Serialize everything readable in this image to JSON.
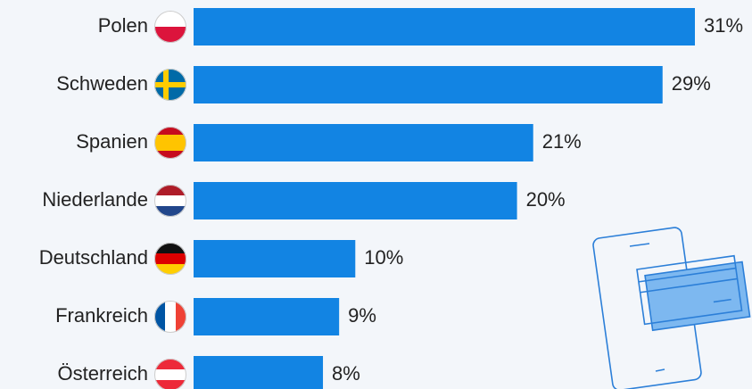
{
  "chart_data": {
    "type": "bar",
    "orientation": "horizontal",
    "categories": [
      "Polen",
      "Schweden",
      "Spanien",
      "Niederlande",
      "Deutschland",
      "Frankreich",
      "Österreich"
    ],
    "values": [
      31,
      29,
      21,
      20,
      10,
      9,
      8
    ],
    "value_labels": [
      "31%",
      "29%",
      "21%",
      "20%",
      "10%",
      "9%",
      "8%"
    ],
    "color": "#1284e3"
  }
}
